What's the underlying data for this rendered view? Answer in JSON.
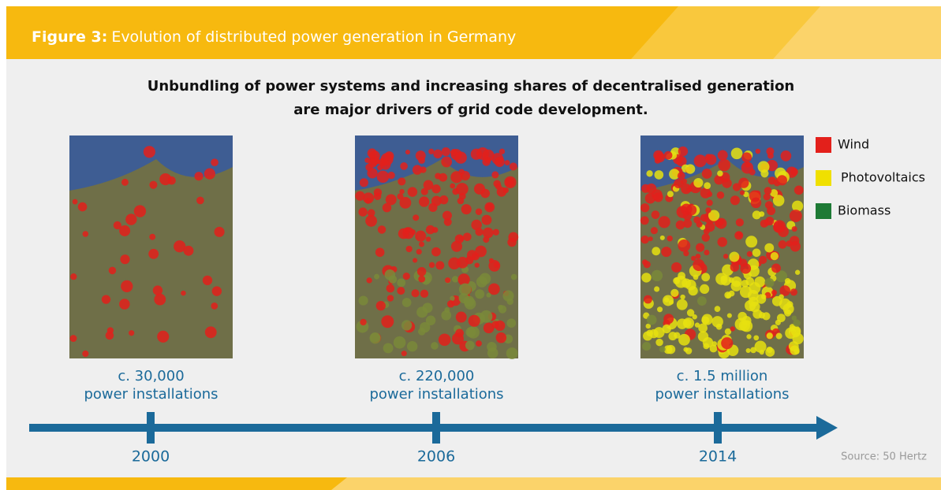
{
  "header": {
    "label": "Figure 3:",
    "title": "Evolution of distributed power generation in Germany"
  },
  "subtitle": [
    "Unbundling of power systems and increasing shares of decentralised generation",
    "are major drivers of grid code development."
  ],
  "panels": [
    {
      "count": "c. 30,000",
      "caption": "power installations",
      "year": "2000"
    },
    {
      "count": "c. 220,000",
      "caption": "power installations",
      "year": "2006"
    },
    {
      "count": "c. 1.5 million",
      "caption": "power installations",
      "year": "2014"
    }
  ],
  "legend": [
    {
      "label": "Wind",
      "color": "#e3201b"
    },
    {
      "label": "Photovoltaics",
      "color": "#f0e000"
    },
    {
      "label": "Biomass",
      "color": "#1e7a35"
    }
  ],
  "source": "Source: 50 Hertz"
}
